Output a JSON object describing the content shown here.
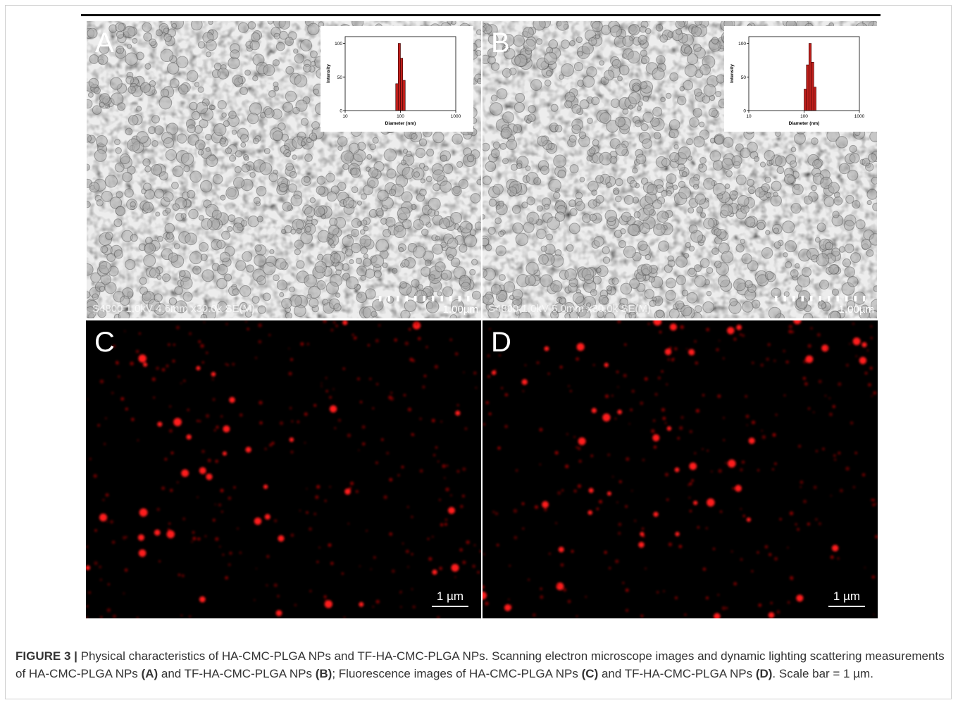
{
  "figure": {
    "panels": [
      {
        "label": "A",
        "instrument_text": "S4800 1.0kV 4.6mm x30.0k SE(M)",
        "scale_text": "1.00µm",
        "inset": {
          "type": "histogram",
          "ylabel": "Intensity",
          "xlabel": "Diameter (nm)",
          "log_x": true,
          "xlim": [
            10,
            1000
          ],
          "xticks": [
            10,
            100,
            1000
          ],
          "ylim": [
            0,
            110
          ],
          "yticks": [
            0,
            50,
            100
          ],
          "bins": [
            82,
            91,
            100,
            110,
            122
          ],
          "values": [
            40,
            100,
            78,
            45
          ],
          "color": "#c0201c"
        }
      },
      {
        "label": "B",
        "instrument_text": "S4800 1.0kV 5.0mm x30.0k SE(M)",
        "scale_text": "1.00µm",
        "inset": {
          "type": "histogram",
          "ylabel": "Intensity",
          "xlabel": "Diameter (nm)",
          "log_x": true,
          "xlim": [
            10,
            1000
          ],
          "xticks": [
            10,
            100,
            1000
          ],
          "ylim": [
            0,
            110
          ],
          "yticks": [
            0,
            50,
            100
          ],
          "bins": [
            100,
            110,
            122,
            135,
            150,
            165
          ],
          "values": [
            32,
            68,
            100,
            72,
            35
          ],
          "color": "#c0201c"
        }
      },
      {
        "label": "C",
        "scale_text": "1 µm"
      },
      {
        "label": "D",
        "scale_text": "1 µm"
      }
    ],
    "caption": {
      "segments": [
        {
          "text": "FIGURE 3 |",
          "bold": true
        },
        {
          "text": " Physical characteristics of HA-CMC-PLGA NPs and TF-HA-CMC-PLGA NPs. Scanning electron microscope images and dynamic lighting scattering measurements of HA-CMC-PLGA NPs ",
          "bold": false
        },
        {
          "text": "(A)",
          "bold": true
        },
        {
          "text": " and TF-HA-CMC-PLGA NPs ",
          "bold": false
        },
        {
          "text": "(B)",
          "bold": true
        },
        {
          "text": "; Fluorescence images of HA-CMC-PLGA NPs ",
          "bold": false
        },
        {
          "text": "(C)",
          "bold": true
        },
        {
          "text": " and TF-HA-CMC-PLGA NPs ",
          "bold": false
        },
        {
          "text": "(D)",
          "bold": true
        },
        {
          "text": ". Scale bar = 1 µm.",
          "bold": false
        }
      ]
    }
  }
}
